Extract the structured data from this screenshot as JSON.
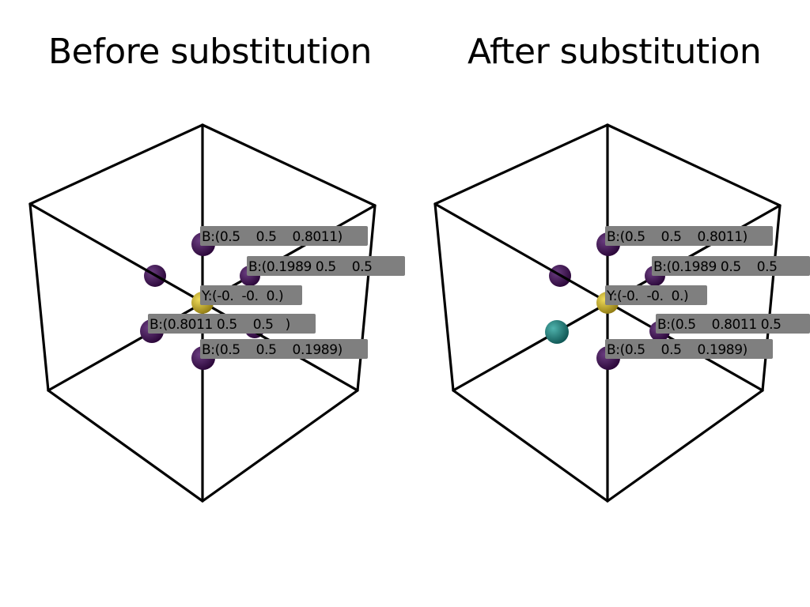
{
  "titles": {
    "before": "Before substitution",
    "after": "After substitution"
  },
  "colors": {
    "boron": "#3a0e4c",
    "yttrium": "#c9b22a",
    "substituted": "#1e7f7c",
    "label_bg": "#7f7f7f",
    "edge": "#000000"
  },
  "panels": [
    {
      "name": "before",
      "labels": [
        "B:(0.5    0.5    0.8011)",
        "B:(0.1989 0.5    0.5    ",
        "Y:(-0.  -0.  0.)",
        "B:(0.8011 0.5    0.5   )",
        "B:(0.5    0.5    0.1989)"
      ]
    },
    {
      "name": "after",
      "labels": [
        "B:(0.5    0.5    0.8011)",
        "B:(0.1989 0.5    0.5    ",
        "Y:(-0.  -0.  0.)",
        "B:(0.5    0.8011 0.5    ",
        "B:(0.5    0.5    0.1989)"
      ]
    }
  ]
}
